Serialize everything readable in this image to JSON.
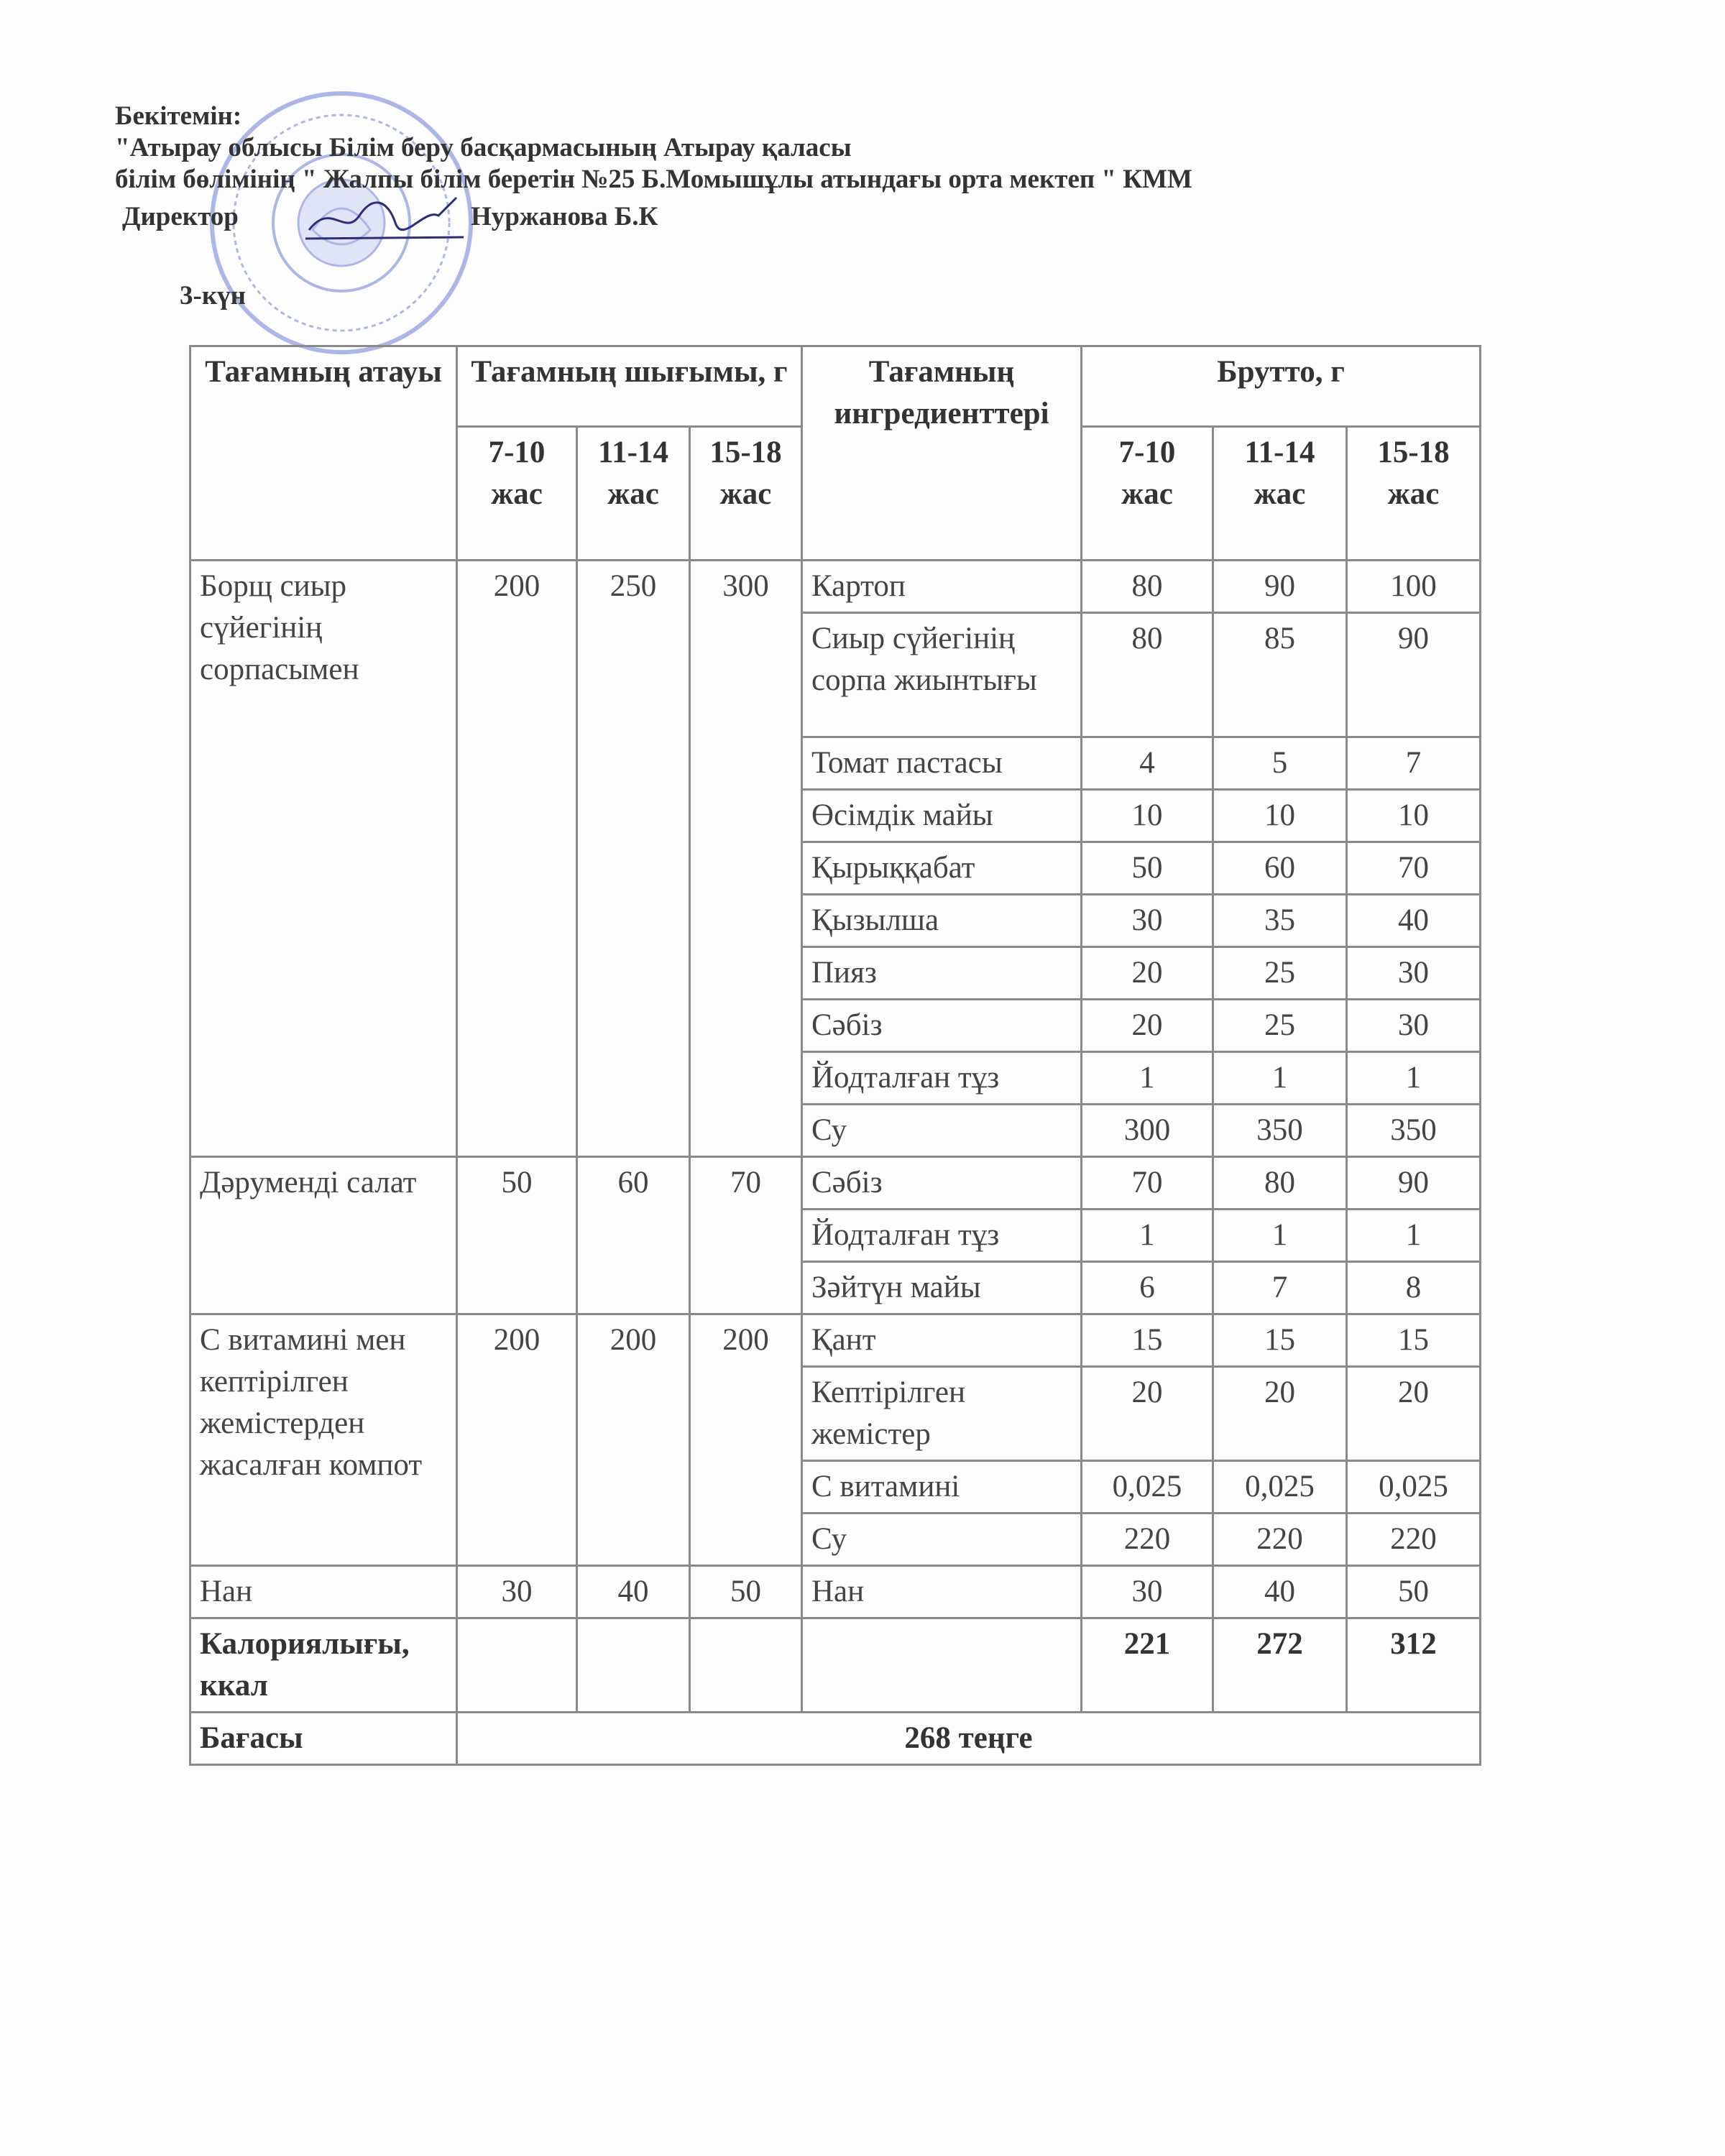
{
  "approval": {
    "label": "Бекітемін:",
    "line1": "\"Атырау облысы Білім беру басқармасының Атырау қаласы",
    "line2": "білім бөлімінің \" Жалпы білім беретін №25 Б.Момышұлы атындағы орта мектеп \" КММ",
    "director_label": "Директор",
    "director_name": "Нуржанова Б.К",
    "stamp_color": "#6b7fd8"
  },
  "day": "3-күн",
  "table": {
    "headers": {
      "dish_name": "Тағамның атауы",
      "output": "Тағамның шығымы, г",
      "ingredients": "Тағамның ингредиенттері",
      "brutto": "Брутто, г",
      "output_ages": [
        "7-10 жас",
        "11-14 жас",
        "15-18 жас"
      ],
      "brutto_ages": [
        "7-10 жас",
        "11-14 жас",
        "15-18 жас"
      ]
    },
    "dishes": [
      {
        "name": "Борщ сиыр сүйегінің сорпасымен",
        "output": [
          "200",
          "250",
          "300"
        ],
        "ingredients": [
          {
            "name": "Картоп",
            "brutto": [
              "80",
              "90",
              "100"
            ]
          },
          {
            "name": "Сиыр сүйегінің сорпа жиынтығы",
            "brutto": [
              "80",
              "85",
              "90"
            ]
          },
          {
            "name": "Томат пастасы",
            "brutto": [
              "4",
              "5",
              "7"
            ]
          },
          {
            "name": "Өсімдік майы",
            "brutto": [
              "10",
              "10",
              "10"
            ]
          },
          {
            "name": "Қырыққабат",
            "brutto": [
              "50",
              "60",
              "70"
            ]
          },
          {
            "name": "Қызылша",
            "brutto": [
              "30",
              "35",
              "40"
            ]
          },
          {
            "name": "Пияз",
            "brutto": [
              "20",
              "25",
              "30"
            ]
          },
          {
            "name": "Сәбіз",
            "brutto": [
              "20",
              "25",
              "30"
            ]
          },
          {
            "name": "Йодталған тұз",
            "brutto": [
              "1",
              "1",
              "1"
            ]
          },
          {
            "name": "Су",
            "brutto": [
              "300",
              "350",
              "350"
            ]
          }
        ]
      },
      {
        "name": "Дәруменді салат",
        "output": [
          "50",
          "60",
          "70"
        ],
        "ingredients": [
          {
            "name": "Сәбіз",
            "brutto": [
              "70",
              "80",
              "90"
            ]
          },
          {
            "name": "Йодталған тұз",
            "brutto": [
              "1",
              "1",
              "1"
            ]
          },
          {
            "name": "Зәйтүн майы",
            "brutto": [
              "6",
              "7",
              "8"
            ]
          }
        ]
      },
      {
        "name": "С витамині мен кептірілген жемістерден жасалған компот",
        "output": [
          "200",
          "200",
          "200"
        ],
        "ingredients": [
          {
            "name": "Қант",
            "brutto": [
              "15",
              "15",
              "15"
            ]
          },
          {
            "name": "Кептірілген жемістер",
            "brutto": [
              "20",
              "20",
              "20"
            ]
          },
          {
            "name": "С витамині",
            "brutto": [
              "0,025",
              "0,025",
              "0,025"
            ]
          },
          {
            "name": "Су",
            "brutto": [
              "220",
              "220",
              "220"
            ]
          }
        ]
      },
      {
        "name": "Нан",
        "output": [
          "30",
          "40",
          "50"
        ],
        "ingredients": [
          {
            "name": "Нан",
            "brutto": [
              "30",
              "40",
              "50"
            ]
          }
        ]
      }
    ],
    "calories": {
      "label": "Калориялығы, ккал",
      "values": [
        "221",
        "272",
        "312"
      ]
    },
    "price": {
      "label": "Бағасы",
      "value": "268 теңге"
    }
  }
}
